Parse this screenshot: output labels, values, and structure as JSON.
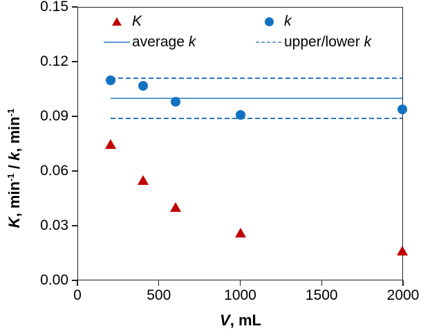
{
  "figure": {
    "x_axis": {
      "title_segments": [
        {
          "text": "V",
          "italic": true
        },
        {
          "text": ", mL"
        }
      ],
      "ticks": [
        {
          "label": "0",
          "value": 0
        },
        {
          "label": "500",
          "value": 500
        },
        {
          "label": "1000",
          "value": 1000
        },
        {
          "label": "1500",
          "value": 1500
        },
        {
          "label": "2000",
          "value": 2000
        }
      ]
    },
    "y_axis": {
      "title_segments": [
        {
          "text": "K",
          "italic": true
        },
        {
          "text": ", min"
        },
        {
          "text": "-1",
          "sup": true
        },
        {
          "text": " / "
        },
        {
          "text": "k",
          "italic": true
        },
        {
          "text": ", min"
        },
        {
          "text": "-1",
          "sup": true
        }
      ],
      "ticks": [
        {
          "label": "0.15",
          "value": 0.15
        },
        {
          "label": "0.12",
          "value": 0.12
        },
        {
          "label": "0.09",
          "value": 0.09
        },
        {
          "label": "0.06",
          "value": 0.06
        },
        {
          "label": "0.03",
          "value": 0.03
        },
        {
          "label": "0.00",
          "value": 0.0
        }
      ]
    }
  },
  "chart_data": {
    "type": "scatter",
    "xlabel": "V, mL",
    "ylabel": "K, min-1 / k, min-1",
    "xlim": [
      0,
      2000
    ],
    "ylim": [
      0,
      0.15
    ],
    "grid": false,
    "x": [
      200,
      400,
      600,
      1000,
      2000
    ],
    "series": [
      {
        "name": "K",
        "marker": "triangle",
        "color": "#c00000",
        "values": [
          0.075,
          0.055,
          0.04,
          0.026,
          0.016
        ]
      },
      {
        "name": "k",
        "marker": "circle",
        "color": "#1272c2",
        "values": [
          0.11,
          0.107,
          0.098,
          0.091,
          0.094
        ]
      }
    ],
    "lines": [
      {
        "name": "average k",
        "style": "solid",
        "color": "#5b9bd5",
        "y": 0.1,
        "x_start": 200,
        "x_end": 2000
      },
      {
        "name": "upper k",
        "style": "dashed",
        "color": "#2e74c0",
        "y": 0.111,
        "x_start": 200,
        "x_end": 2000
      },
      {
        "name": "lower k",
        "style": "dashed",
        "color": "#2e74c0",
        "y": 0.089,
        "x_start": 200,
        "x_end": 2000
      }
    ],
    "legend": {
      "position": "top-center",
      "entries": [
        {
          "swatch": "triangle",
          "color": "#c00000",
          "label_prefix": "",
          "label_italic": "K",
          "label_suffix": ""
        },
        {
          "swatch": "circle",
          "color": "#1272c2",
          "label_prefix": "",
          "label_italic": "k",
          "label_suffix": ""
        },
        {
          "swatch": "solid-line",
          "color": "#5b9bd5",
          "label_prefix": "average ",
          "label_italic": "k",
          "label_suffix": ""
        },
        {
          "swatch": "dashed-line",
          "color": "#6f9fd8",
          "label_prefix": "upper/lower ",
          "label_italic": "k",
          "label_suffix": ""
        }
      ]
    }
  }
}
